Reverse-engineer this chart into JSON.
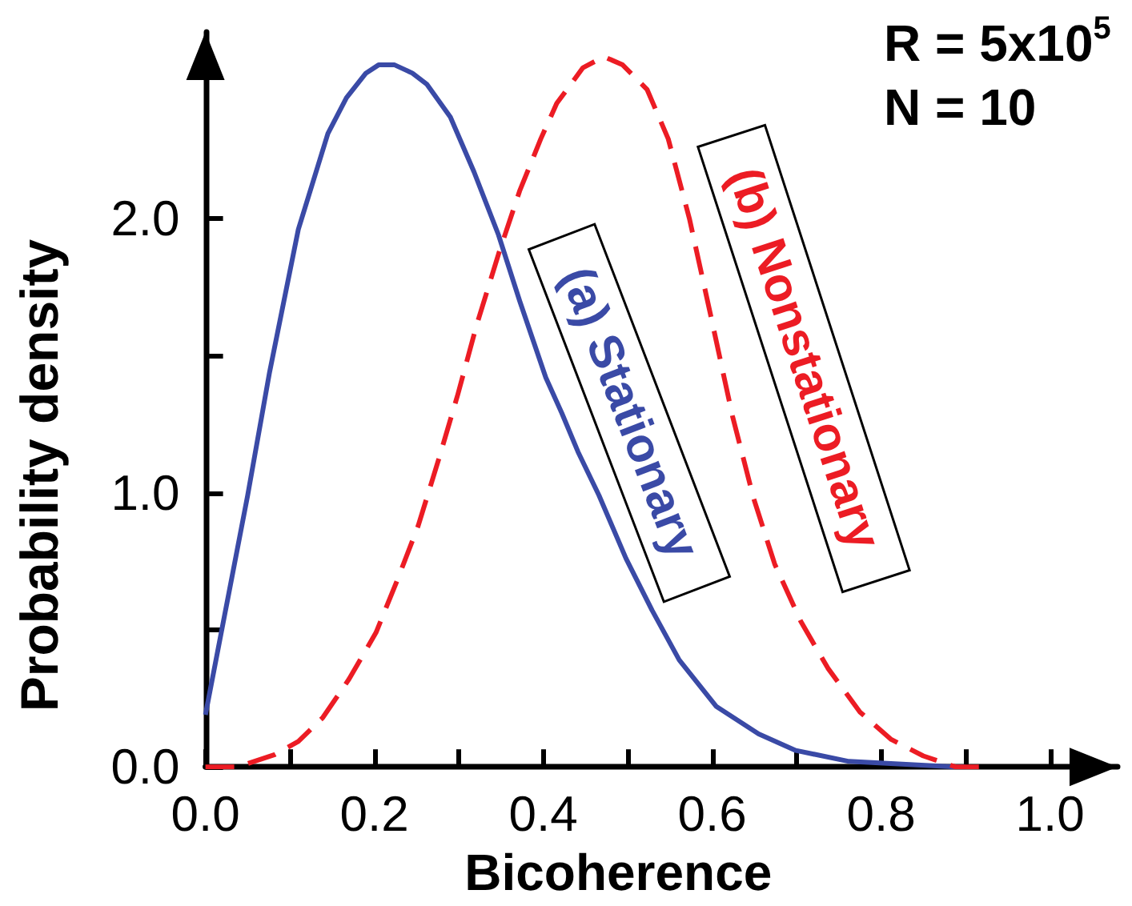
{
  "chart_data": {
    "type": "line",
    "xlabel": "Bicoherence",
    "ylabel": "Probability density",
    "annotations": [
      "R = 5x10$^{5}$",
      "N = 10"
    ],
    "xlim": [
      0,
      1.08
    ],
    "ylim": [
      0,
      2.68
    ],
    "xticks": [
      {
        "value": 0,
        "label": "0.0"
      },
      {
        "value": 0.1,
        "label": null
      },
      0.2,
      {
        "value": 0.3,
        "label": null
      },
      0.4,
      {
        "value": 0.5,
        "label": null
      },
      0.6,
      {
        "value": 0.7,
        "label": null
      },
      0.8,
      {
        "value": 0.9,
        "label": null
      },
      {
        "value": 1,
        "label": "1.0"
      }
    ],
    "yticks": [
      {
        "value": 0,
        "label": "0.0"
      },
      {
        "value": 0.5,
        "label": null
      },
      {
        "value": 1,
        "label": "1.0"
      },
      {
        "value": 1.5,
        "label": null
      },
      {
        "value": 2,
        "label": "2.0"
      }
    ],
    "grid": false,
    "marker": "none",
    "series": [
      {
        "name": "(a) Stationary",
        "color": "#3a4aa6",
        "line_style": "solid",
        "x": [
          0,
          0.025,
          0.05,
          0.076,
          0.11,
          0.145,
          0.167,
          0.19,
          0.205,
          0.224,
          0.245,
          0.262,
          0.29,
          0.318,
          0.347,
          0.372,
          0.403,
          0.422,
          0.441,
          0.466,
          0.498,
          0.529,
          0.561,
          0.605,
          0.655,
          0.699,
          0.762,
          0.825,
          0.888,
          0.9
        ],
        "values": [
          0.19,
          0.59,
          0.99,
          1.44,
          1.96,
          2.31,
          2.44,
          2.53,
          2.56,
          2.56,
          2.53,
          2.49,
          2.37,
          2.17,
          1.94,
          1.7,
          1.42,
          1.29,
          1.15,
          0.99,
          0.76,
          0.57,
          0.39,
          0.22,
          0.12,
          0.06,
          0.02,
          0.01,
          0,
          0
        ]
      },
      {
        "name": "(b) Nonstationary",
        "color": "#ec1c24",
        "line_style": "dashed",
        "x": [
          0,
          0.038,
          0.082,
          0.11,
          0.139,
          0.17,
          0.202,
          0.227,
          0.252,
          0.277,
          0.299,
          0.321,
          0.347,
          0.372,
          0.397,
          0.416,
          0.428,
          0.447,
          0.472,
          0.494,
          0.523,
          0.548,
          0.573,
          0.598,
          0.624,
          0.649,
          0.674,
          0.705,
          0.737,
          0.775,
          0.812,
          0.85,
          0.888,
          0.926
        ],
        "values": [
          0,
          0,
          0.045,
          0.093,
          0.18,
          0.32,
          0.49,
          0.68,
          0.88,
          1.13,
          1.36,
          1.61,
          1.87,
          2.1,
          2.29,
          2.42,
          2.47,
          2.55,
          2.59,
          2.56,
          2.47,
          2.29,
          2,
          1.65,
          1.28,
          0.98,
          0.74,
          0.53,
          0.36,
          0.2,
          0.1,
          0.04,
          0,
          0
        ]
      }
    ]
  }
}
